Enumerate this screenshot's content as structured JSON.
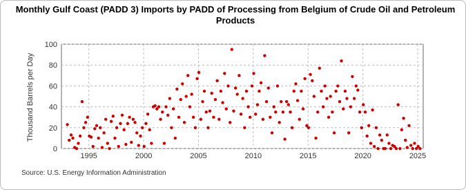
{
  "chart_data": {
    "type": "scatter",
    "title": "Monthly Gulf Coast (PADD 3) Imports by PADD of Processing from Belgium of Crude Oil and Petroleum Products",
    "y_label": "Thousand Barrels per Day",
    "source": "Source: U.S. Energy Information Administration",
    "color": "#cc0000",
    "grid": true,
    "xlim": [
      1992.5,
      2025.5
    ],
    "xticks": [
      1995,
      2000,
      2005,
      2010,
      2015,
      2020,
      2025
    ],
    "ylim": [
      0,
      100
    ],
    "yticks": [
      0,
      20,
      40,
      60,
      80,
      100
    ],
    "x": [
      1993.04,
      1993.21,
      1993.38,
      1993.54,
      1993.71,
      1993.88,
      1994.04,
      1994.21,
      1994.38,
      1994.54,
      1994.71,
      1994.88,
      1995.04,
      1995.21,
      1995.38,
      1995.54,
      1995.71,
      1995.88,
      1996.04,
      1996.21,
      1996.38,
      1996.54,
      1996.71,
      1996.88,
      1997.04,
      1997.21,
      1997.38,
      1997.54,
      1997.71,
      1997.88,
      1998.04,
      1998.21,
      1998.38,
      1998.54,
      1998.71,
      1998.88,
      1999.04,
      1999.21,
      1999.38,
      1999.54,
      1999.71,
      1999.88,
      2000.04,
      2000.21,
      2000.38,
      2000.54,
      2000.71,
      2000.88,
      2001.04,
      2001.21,
      2001.38,
      2001.54,
      2001.71,
      2001.88,
      2002.04,
      2002.21,
      2002.38,
      2002.54,
      2002.71,
      2002.88,
      2003.04,
      2003.21,
      2003.38,
      2003.54,
      2003.71,
      2003.88,
      2004.04,
      2004.21,
      2004.38,
      2004.54,
      2004.71,
      2004.88,
      2005.04,
      2005.21,
      2005.38,
      2005.54,
      2005.71,
      2005.88,
      2006.04,
      2006.21,
      2006.38,
      2006.54,
      2006.71,
      2006.88,
      2007.04,
      2007.21,
      2007.38,
      2007.54,
      2007.71,
      2007.88,
      2008.04,
      2008.21,
      2008.38,
      2008.54,
      2008.71,
      2008.88,
      2009.04,
      2009.21,
      2009.38,
      2009.54,
      2009.71,
      2009.88,
      2010.04,
      2010.21,
      2010.38,
      2010.54,
      2010.71,
      2010.88,
      2011.04,
      2011.21,
      2011.38,
      2011.54,
      2011.71,
      2011.88,
      2012.04,
      2012.21,
      2012.38,
      2012.54,
      2012.71,
      2012.88,
      2013.04,
      2013.21,
      2013.38,
      2013.54,
      2013.71,
      2013.88,
      2014.04,
      2014.21,
      2014.38,
      2014.54,
      2014.71,
      2014.88,
      2015.04,
      2015.21,
      2015.38,
      2015.54,
      2015.71,
      2015.88,
      2016.04,
      2016.21,
      2016.38,
      2016.54,
      2016.71,
      2016.88,
      2017.04,
      2017.21,
      2017.38,
      2017.54,
      2017.71,
      2017.88,
      2018.04,
      2018.21,
      2018.38,
      2018.54,
      2018.71,
      2018.88,
      2019.04,
      2019.21,
      2019.38,
      2019.54,
      2019.71,
      2019.88,
      2020.04,
      2020.21,
      2020.38,
      2020.54,
      2020.71,
      2020.88,
      2021.04,
      2021.21,
      2021.38,
      2021.54,
      2021.71,
      2021.88,
      2022.04,
      2022.21,
      2022.38,
      2022.54,
      2022.71,
      2022.88,
      2023.04,
      2023.21,
      2023.38,
      2023.54,
      2023.71,
      2023.88,
      2024.04,
      2024.21,
      2024.38,
      2024.54,
      2024.71,
      2024.88,
      2025.04,
      2025.21
    ],
    "values": [
      23,
      8,
      13,
      10,
      1,
      0,
      5,
      12,
      45,
      20,
      25,
      30,
      12,
      11,
      2,
      19,
      22,
      10,
      20,
      1,
      15,
      28,
      5,
      0,
      26,
      31,
      10,
      20,
      2,
      24,
      32,
      18,
      4,
      24,
      30,
      6,
      28,
      25,
      15,
      3,
      12,
      20,
      2,
      24,
      33,
      18,
      5,
      40,
      41,
      38,
      40,
      28,
      35,
      5,
      40,
      32,
      48,
      20,
      38,
      10,
      57,
      30,
      47,
      62,
      25,
      50,
      70,
      40,
      52,
      30,
      20,
      67,
      73,
      28,
      45,
      55,
      35,
      20,
      36,
      53,
      30,
      47,
      65,
      28,
      55,
      44,
      72,
      38,
      60,
      25,
      95,
      36,
      58,
      52,
      70,
      33,
      48,
      20,
      55,
      40,
      30,
      60,
      72,
      33,
      42,
      55,
      63,
      28,
      89,
      45,
      58,
      30,
      15,
      40,
      35,
      60,
      25,
      45,
      35,
      9,
      45,
      42,
      35,
      20,
      55,
      62,
      46,
      28,
      55,
      38,
      67,
      22,
      20,
      71,
      65,
      50,
      10,
      35,
      77,
      55,
      40,
      60,
      48,
      30,
      50,
      35,
      15,
      55,
      60,
      45,
      84,
      38,
      55,
      48,
      15,
      40,
      69,
      48,
      60,
      56,
      35,
      20,
      42,
      35,
      12,
      22,
      5,
      37,
      2,
      20,
      0,
      13,
      8,
      0,
      0,
      13,
      5,
      0,
      3,
      2,
      0,
      42,
      0,
      18,
      29,
      8,
      1,
      22,
      3,
      0,
      5,
      0,
      2,
      0
    ]
  }
}
